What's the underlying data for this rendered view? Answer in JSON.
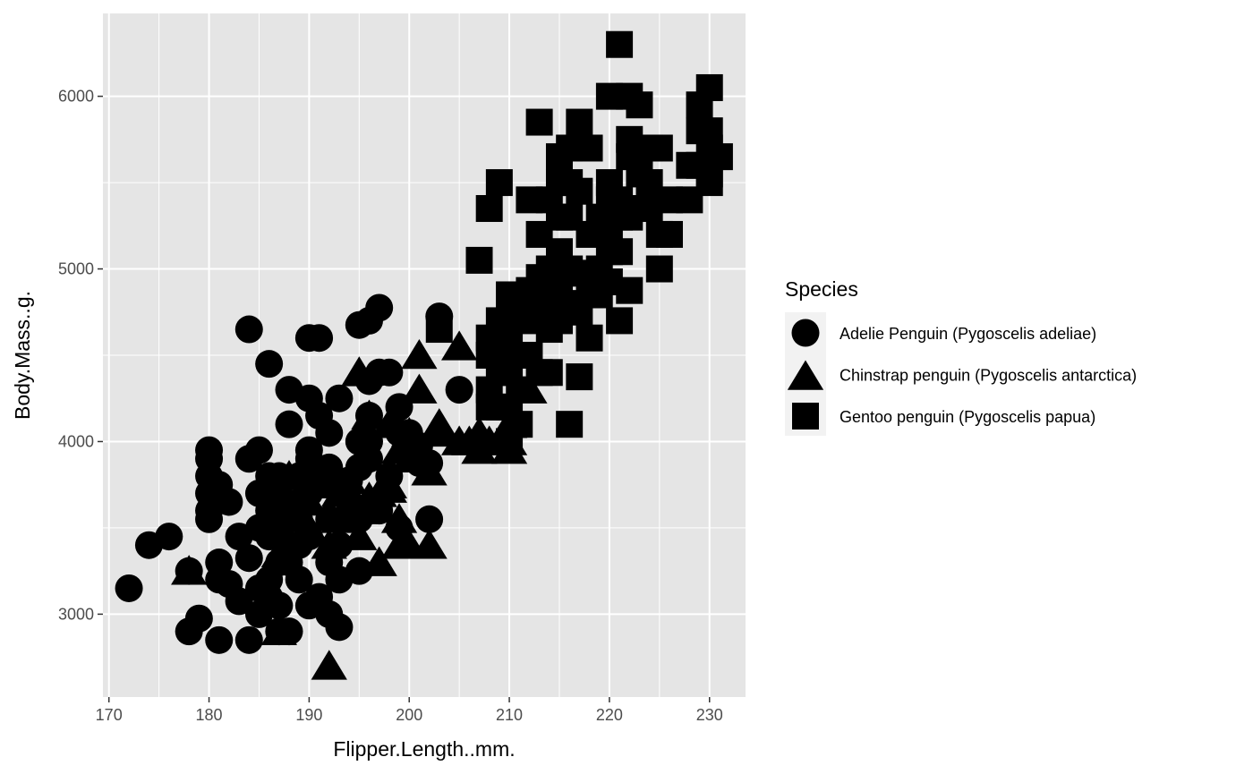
{
  "chart_data": {
    "type": "scatter",
    "title": "",
    "xlabel": "Flipper.Length..mm.",
    "ylabel": "Body.Mass..g.",
    "xlim": [
      169.4,
      233.6
    ],
    "ylim": [
      2520,
      6480
    ],
    "x_ticks": [
      170,
      180,
      190,
      200,
      210,
      220,
      230
    ],
    "y_ticks": [
      3000,
      4000,
      5000,
      6000
    ],
    "x_tick_labels": [
      "170",
      "180",
      "190",
      "200",
      "210",
      "220",
      "230"
    ],
    "y_tick_labels": [
      "3000",
      "4000",
      "5000",
      "6000"
    ],
    "grid": true,
    "panel_background": "#e5e5e5",
    "grid_color": "#ffffff",
    "point_color": "#000000",
    "legend": {
      "title": "Species",
      "position": "right",
      "items": [
        {
          "label": "Adelie Penguin (Pygoscelis adeliae)",
          "shape": "circle"
        },
        {
          "label": "Chinstrap penguin (Pygoscelis antarctica)",
          "shape": "triangle"
        },
        {
          "label": "Gentoo penguin (Pygoscelis papua)",
          "shape": "square"
        }
      ]
    },
    "series": [
      {
        "name": "Adelie Penguin (Pygoscelis adeliae)",
        "shape": "circle",
        "points": [
          [
            172,
            3150
          ],
          [
            174,
            3400
          ],
          [
            176,
            3450
          ],
          [
            178,
            3250
          ],
          [
            178,
            2900
          ],
          [
            179,
            2975
          ],
          [
            180,
            3900
          ],
          [
            180,
            3950
          ],
          [
            180,
            3800
          ],
          [
            180,
            3700
          ],
          [
            180,
            3600
          ],
          [
            180,
            3550
          ],
          [
            181,
            3300
          ],
          [
            181,
            3200
          ],
          [
            181,
            2850
          ],
          [
            181,
            3750
          ],
          [
            182,
            3175
          ],
          [
            182,
            3650
          ],
          [
            183,
            3075
          ],
          [
            183,
            3450
          ],
          [
            184,
            3900
          ],
          [
            184,
            3325
          ],
          [
            184,
            2850
          ],
          [
            184,
            4650
          ],
          [
            185,
            3950
          ],
          [
            185,
            3700
          ],
          [
            185,
            3500
          ],
          [
            185,
            3150
          ],
          [
            185,
            3000
          ],
          [
            186,
            4450
          ],
          [
            186,
            3800
          ],
          [
            186,
            3600
          ],
          [
            186,
            3450
          ],
          [
            186,
            3100
          ],
          [
            187,
            3800
          ],
          [
            187,
            3700
          ],
          [
            187,
            3500
          ],
          [
            187,
            3300
          ],
          [
            187,
            3050
          ],
          [
            187,
            2900
          ],
          [
            188,
            4300
          ],
          [
            188,
            4100
          ],
          [
            188,
            3600
          ],
          [
            188,
            3400
          ],
          [
            188,
            3300
          ],
          [
            188,
            2900
          ],
          [
            189,
            3200
          ],
          [
            189,
            3400
          ],
          [
            189,
            3550
          ],
          [
            189,
            3800
          ],
          [
            190,
            4600
          ],
          [
            190,
            4250
          ],
          [
            190,
            3950
          ],
          [
            190,
            3900
          ],
          [
            190,
            3700
          ],
          [
            190,
            3450
          ],
          [
            190,
            3050
          ],
          [
            191,
            4600
          ],
          [
            191,
            4150
          ],
          [
            191,
            3800
          ],
          [
            191,
            3100
          ],
          [
            192,
            3850
          ],
          [
            192,
            3000
          ],
          [
            192,
            4050
          ],
          [
            192,
            3550
          ],
          [
            192,
            3300
          ],
          [
            193,
            3750
          ],
          [
            193,
            3400
          ],
          [
            193,
            2925
          ],
          [
            193,
            4250
          ],
          [
            193,
            3200
          ],
          [
            194,
            3775
          ],
          [
            194,
            3650
          ],
          [
            195,
            4675
          ],
          [
            195,
            4000
          ],
          [
            195,
            3850
          ],
          [
            195,
            3550
          ],
          [
            195,
            3250
          ],
          [
            196,
            4700
          ],
          [
            196,
            4350
          ],
          [
            196,
            4150
          ],
          [
            196,
            3900
          ],
          [
            197,
            4775
          ],
          [
            197,
            4400
          ],
          [
            197,
            3600
          ],
          [
            198,
            4400
          ],
          [
            198,
            3800
          ],
          [
            199,
            4200
          ],
          [
            199,
            3500
          ],
          [
            199,
            4050
          ],
          [
            200,
            4050
          ],
          [
            201,
            3975
          ],
          [
            201,
            3875
          ],
          [
            202,
            3875
          ],
          [
            202,
            3550
          ],
          [
            203,
            4725
          ],
          [
            205,
            4300
          ],
          [
            196,
            4000
          ],
          [
            186,
            3200
          ],
          [
            189,
            3650
          ]
        ]
      },
      {
        "name": "Chinstrap penguin (Pygoscelis antarctica)",
        "shape": "triangle",
        "points": [
          [
            178,
            3250
          ],
          [
            181,
            3675
          ],
          [
            187,
            3350
          ],
          [
            187,
            2900
          ],
          [
            187,
            3525
          ],
          [
            188,
            3800
          ],
          [
            190,
            3500
          ],
          [
            190,
            3650
          ],
          [
            191,
            3750
          ],
          [
            192,
            2700
          ],
          [
            192,
            3400
          ],
          [
            193,
            3700
          ],
          [
            193,
            3550
          ],
          [
            194,
            3775
          ],
          [
            195,
            4400
          ],
          [
            195,
            3600
          ],
          [
            195,
            3450
          ],
          [
            196,
            4150
          ],
          [
            196,
            3675
          ],
          [
            197,
            3700
          ],
          [
            197,
            3300
          ],
          [
            198,
            3750
          ],
          [
            198,
            3725
          ],
          [
            198,
            4100
          ],
          [
            199,
            3550
          ],
          [
            199,
            3400
          ],
          [
            199,
            3950
          ],
          [
            200,
            3400
          ],
          [
            200,
            3900
          ],
          [
            200,
            4050
          ],
          [
            201,
            4500
          ],
          [
            201,
            4300
          ],
          [
            202,
            3825
          ],
          [
            202,
            3400
          ],
          [
            203,
            4100
          ],
          [
            203,
            4050
          ],
          [
            205,
            4550
          ],
          [
            205,
            4000
          ],
          [
            206,
            4000
          ],
          [
            207,
            4050
          ],
          [
            207,
            3950
          ],
          [
            208,
            4000
          ],
          [
            210,
            4100
          ],
          [
            210,
            3950
          ],
          [
            212,
            4300
          ],
          [
            210,
            4000
          ]
        ]
      },
      {
        "name": "Gentoo penguin (Pygoscelis papua)",
        "shape": "square",
        "points": [
          [
            203,
            4650
          ],
          [
            207,
            5050
          ],
          [
            208,
            5350
          ],
          [
            208,
            4600
          ],
          [
            208,
            4500
          ],
          [
            208,
            4300
          ],
          [
            208,
            4200
          ],
          [
            209,
            5500
          ],
          [
            209,
            4700
          ],
          [
            209,
            4600
          ],
          [
            209,
            4400
          ],
          [
            209,
            4200
          ],
          [
            210,
            4850
          ],
          [
            210,
            4700
          ],
          [
            210,
            4550
          ],
          [
            210,
            4400
          ],
          [
            210,
            4200
          ],
          [
            210,
            4000
          ],
          [
            211,
            4800
          ],
          [
            211,
            4500
          ],
          [
            211,
            4300
          ],
          [
            211,
            4100
          ],
          [
            212,
            4875
          ],
          [
            212,
            4700
          ],
          [
            212,
            4500
          ],
          [
            213,
            5200
          ],
          [
            213,
            4950
          ],
          [
            213,
            4750
          ],
          [
            213,
            4400
          ],
          [
            213,
            5850
          ],
          [
            214,
            5400
          ],
          [
            214,
            5000
          ],
          [
            214,
            4850
          ],
          [
            214,
            4650
          ],
          [
            214,
            4400
          ],
          [
            215,
            5650
          ],
          [
            215,
            5500
          ],
          [
            215,
            5300
          ],
          [
            215,
            5100
          ],
          [
            215,
            5000
          ],
          [
            215,
            4850
          ],
          [
            215,
            4700
          ],
          [
            216,
            5500
          ],
          [
            216,
            5300
          ],
          [
            216,
            5000
          ],
          [
            216,
            4800
          ],
          [
            216,
            4100
          ],
          [
            217,
            5850
          ],
          [
            217,
            5450
          ],
          [
            217,
            4975
          ],
          [
            217,
            4750
          ],
          [
            217,
            4375
          ],
          [
            218,
            5700
          ],
          [
            218,
            5200
          ],
          [
            218,
            4850
          ],
          [
            218,
            4600
          ],
          [
            219,
            5300
          ],
          [
            219,
            5000
          ],
          [
            220,
            5500
          ],
          [
            220,
            5400
          ],
          [
            220,
            5200
          ],
          [
            220,
            4925
          ],
          [
            220,
            6000
          ],
          [
            220,
            5100
          ],
          [
            221,
            5400
          ],
          [
            221,
            5300
          ],
          [
            221,
            5100
          ],
          [
            221,
            4700
          ],
          [
            221,
            6300
          ],
          [
            222,
            5750
          ],
          [
            222,
            5650
          ],
          [
            222,
            5350
          ],
          [
            222,
            5300
          ],
          [
            222,
            4875
          ],
          [
            222,
            6000
          ],
          [
            223,
            5550
          ],
          [
            223,
            5950
          ],
          [
            224,
            5700
          ],
          [
            224,
            5500
          ],
          [
            224,
            5350
          ],
          [
            224,
            5400
          ],
          [
            225,
            5200
          ],
          [
            225,
            5000
          ],
          [
            225,
            5700
          ],
          [
            226,
            5200
          ],
          [
            228,
            5600
          ],
          [
            228,
            5400
          ],
          [
            229,
            5800
          ],
          [
            229,
            5950
          ],
          [
            229,
            5600
          ],
          [
            230,
            6050
          ],
          [
            230,
            5800
          ],
          [
            230,
            5550
          ],
          [
            230,
            5500
          ],
          [
            231,
            5650
          ],
          [
            230,
            5700
          ],
          [
            219,
            4850
          ],
          [
            212,
            5400
          ],
          [
            216,
            5700
          ],
          [
            226,
            5400
          ]
        ]
      }
    ]
  }
}
